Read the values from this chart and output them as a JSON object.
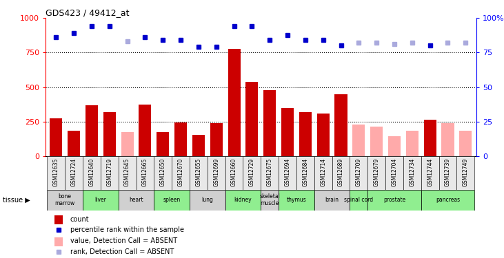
{
  "title": "GDS423 / 49412_at",
  "samples": [
    "GSM12635",
    "GSM12724",
    "GSM12640",
    "GSM12719",
    "GSM12645",
    "GSM12665",
    "GSM12650",
    "GSM12670",
    "GSM12655",
    "GSM12699",
    "GSM12660",
    "GSM12729",
    "GSM12675",
    "GSM12694",
    "GSM12684",
    "GSM12714",
    "GSM12689",
    "GSM12709",
    "GSM12679",
    "GSM12704",
    "GSM12734",
    "GSM12744",
    "GSM12739",
    "GSM12749"
  ],
  "count_values": [
    275,
    185,
    370,
    320,
    0,
    375,
    175,
    245,
    155,
    240,
    775,
    540,
    480,
    350,
    320,
    310,
    450,
    0,
    0,
    0,
    0,
    265,
    0,
    0
  ],
  "count_absent": [
    false,
    false,
    false,
    false,
    true,
    false,
    false,
    false,
    false,
    false,
    false,
    false,
    false,
    false,
    false,
    false,
    false,
    true,
    true,
    true,
    true,
    false,
    true,
    true
  ],
  "absent_count_values": [
    0,
    0,
    0,
    0,
    175,
    0,
    0,
    0,
    0,
    0,
    0,
    0,
    0,
    0,
    0,
    0,
    0,
    230,
    215,
    145,
    185,
    0,
    240,
    185
  ],
  "rank_values": [
    860,
    890,
    940,
    940,
    0,
    860,
    840,
    840,
    790,
    790,
    940,
    940,
    840,
    875,
    840,
    840,
    800,
    0,
    0,
    0,
    0,
    800,
    0,
    0
  ],
  "rank_absent": [
    false,
    false,
    false,
    false,
    true,
    false,
    false,
    false,
    false,
    false,
    false,
    false,
    false,
    false,
    false,
    false,
    false,
    true,
    true,
    true,
    true,
    false,
    true,
    true
  ],
  "absent_rank_values": [
    0,
    0,
    0,
    0,
    830,
    0,
    0,
    0,
    0,
    0,
    0,
    0,
    0,
    0,
    0,
    0,
    0,
    820,
    820,
    810,
    820,
    0,
    820,
    820
  ],
  "tissues": [
    {
      "name": "bone\nmarrow",
      "start": 0,
      "end": 2,
      "color": "#d0d0d0"
    },
    {
      "name": "liver",
      "start": 2,
      "end": 4,
      "color": "#90EE90"
    },
    {
      "name": "heart",
      "start": 4,
      "end": 6,
      "color": "#d0d0d0"
    },
    {
      "name": "spleen",
      "start": 6,
      "end": 8,
      "color": "#90EE90"
    },
    {
      "name": "lung",
      "start": 8,
      "end": 10,
      "color": "#d0d0d0"
    },
    {
      "name": "kidney",
      "start": 10,
      "end": 12,
      "color": "#90EE90"
    },
    {
      "name": "skeletal\nmuscle",
      "start": 12,
      "end": 13,
      "color": "#d0d0d0"
    },
    {
      "name": "thymus",
      "start": 13,
      "end": 15,
      "color": "#90EE90"
    },
    {
      "name": "brain",
      "start": 15,
      "end": 17,
      "color": "#d0d0d0"
    },
    {
      "name": "spinal cord",
      "start": 17,
      "end": 18,
      "color": "#90EE90"
    },
    {
      "name": "prostate",
      "start": 18,
      "end": 21,
      "color": "#90EE90"
    },
    {
      "name": "pancreas",
      "start": 21,
      "end": 24,
      "color": "#90EE90"
    }
  ],
  "ylim_left": [
    0,
    1000
  ],
  "ylim_right": [
    0,
    100
  ],
  "yticks_left": [
    0,
    250,
    500,
    750,
    1000
  ],
  "yticks_right": [
    0,
    25,
    50,
    75,
    100
  ],
  "bar_color_present": "#cc0000",
  "bar_color_absent": "#ffaaaa",
  "dot_color_present": "#0000cc",
  "dot_color_absent": "#aaaadd",
  "legend_items": [
    {
      "label": "count",
      "color": "#cc0000",
      "type": "bar"
    },
    {
      "label": "percentile rank within the sample",
      "color": "#0000cc",
      "type": "dot"
    },
    {
      "label": "value, Detection Call = ABSENT",
      "color": "#ffaaaa",
      "type": "bar"
    },
    {
      "label": "rank, Detection Call = ABSENT",
      "color": "#aaaadd",
      "type": "dot"
    }
  ]
}
